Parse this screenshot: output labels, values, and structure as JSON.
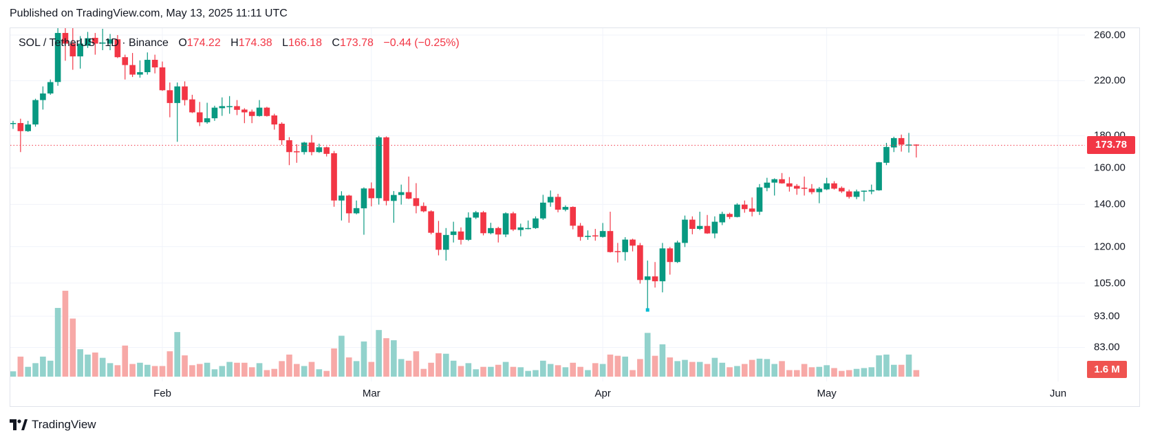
{
  "header": {
    "published": "Published on TradingView.com, May 13, 2025 11:11 UTC"
  },
  "legend": {
    "symbol": "SOL / TetherUS · 1D · Binance",
    "open_label": "O",
    "open": "174.22",
    "high_label": "H",
    "high": "174.38",
    "low_label": "L",
    "low": "166.18",
    "close_label": "C",
    "close": "173.78",
    "change": "−0.44 (−0.25%)"
  },
  "price_axis": {
    "labels": [
      "260.00",
      "220.00",
      "180.00",
      "160.00",
      "140.00",
      "120.00",
      "105.00",
      "93.00",
      "83.00"
    ],
    "scale": "log"
  },
  "time_axis": {
    "labels": [
      {
        "label": "Feb",
        "date": "2025-02-01"
      },
      {
        "label": "Mar",
        "date": "2025-03-01"
      },
      {
        "label": "Apr",
        "date": "2025-04-01"
      },
      {
        "label": "May",
        "date": "2025-05-01"
      },
      {
        "label": "Jun",
        "date": "2025-06-01"
      }
    ]
  },
  "last_price_label": "173.78",
  "volume_label": "1.6 M",
  "logo": {
    "text": "TradingView",
    "icon": "tradingview-logo-icon"
  },
  "colors": {
    "up": "#089981",
    "down": "#f23645",
    "volume_up": "#92d2cc",
    "volume_down": "#f7a9a7",
    "grid": "#f0f3fa",
    "last_price": "#f23645"
  },
  "chart_data": {
    "type": "candlestick",
    "title": "SOL / TetherUS · 1D · Binance",
    "y_scale": "log",
    "ylim": [
      80,
      265
    ],
    "grid": true,
    "columns": [
      "date",
      "open",
      "high",
      "low",
      "close",
      "volume_M"
    ],
    "rows": [
      [
        "2025-01-12",
        188,
        190,
        184.5,
        188.5,
        1.3
      ],
      [
        "2025-01-13",
        188.5,
        191.5,
        169.5,
        183,
        4.9
      ],
      [
        "2025-01-14",
        183,
        190,
        182.5,
        187.5,
        2.4
      ],
      [
        "2025-01-15",
        187.5,
        206,
        186,
        205,
        3.3
      ],
      [
        "2025-01-16",
        205,
        215.5,
        198,
        210,
        4.9
      ],
      [
        "2025-01-17",
        210,
        221,
        209,
        218.9,
        3.9
      ],
      [
        "2025-01-18",
        219,
        270,
        216,
        262,
        16.8
      ],
      [
        "2025-01-19",
        262,
        295,
        236.7,
        252,
        21.0
      ],
      [
        "2025-01-20",
        252,
        275,
        229,
        240.5,
        14.2
      ],
      [
        "2025-01-21",
        240.5,
        259,
        230,
        252,
        6.7
      ],
      [
        "2025-01-22",
        250,
        263,
        248,
        257,
        5.4
      ],
      [
        "2025-01-23",
        257.4,
        262,
        242,
        252,
        5.9
      ],
      [
        "2025-01-24",
        252,
        266,
        246,
        253,
        4.6
      ],
      [
        "2025-01-25",
        252,
        261,
        246,
        256,
        3.3
      ],
      [
        "2025-01-26",
        256,
        260,
        239,
        239.8,
        2.8
      ],
      [
        "2025-01-27",
        239.8,
        242,
        221,
        233,
        7.6
      ],
      [
        "2025-01-28",
        233,
        243.5,
        223,
        225,
        3.1
      ],
      [
        "2025-01-29",
        225,
        237,
        222.5,
        227,
        3.4
      ],
      [
        "2025-01-30",
        227,
        244,
        225,
        237.5,
        2.9
      ],
      [
        "2025-01-31",
        237.5,
        242,
        226,
        231,
        2.6
      ],
      [
        "2025-02-01",
        231,
        236,
        212,
        212.5,
        2.6
      ],
      [
        "2025-02-02",
        212.5,
        218.6,
        192.5,
        202.8,
        6.2
      ],
      [
        "2025-02-03",
        202.8,
        218.6,
        176,
        215.5,
        10.9
      ],
      [
        "2025-02-04",
        215.5,
        219.5,
        201,
        205,
        5.2
      ],
      [
        "2025-02-05",
        205.5,
        209,
        195.5,
        196,
        2.8
      ],
      [
        "2025-02-06",
        196,
        203.6,
        186.4,
        189,
        3.1
      ],
      [
        "2025-02-07",
        189,
        203,
        188,
        191.8,
        3.4
      ],
      [
        "2025-02-08",
        191.8,
        200.8,
        190,
        199.4,
        1.8
      ],
      [
        "2025-02-09",
        199,
        207,
        193.5,
        200.5,
        2.6
      ],
      [
        "2025-02-10",
        200.4,
        208,
        195,
        200.5,
        3.6
      ],
      [
        "2025-02-11",
        200.5,
        205,
        194,
        197.8,
        3.4
      ],
      [
        "2025-02-12",
        198,
        199,
        188.4,
        196,
        3.4
      ],
      [
        "2025-02-13",
        196.5,
        198,
        188.4,
        193.4,
        2.3
      ],
      [
        "2025-02-14",
        193.4,
        205,
        193,
        199.4,
        3.3
      ],
      [
        "2025-02-15",
        199.4,
        200,
        193,
        193.4,
        1.6
      ],
      [
        "2025-02-16",
        193.8,
        195,
        184,
        187.5,
        1.9
      ],
      [
        "2025-02-17",
        188,
        189,
        174,
        177,
        3.8
      ],
      [
        "2025-02-18",
        177,
        179,
        161.6,
        169.5,
        5.4
      ],
      [
        "2025-02-19",
        170,
        174.4,
        163,
        169.8,
        3.1
      ],
      [
        "2025-02-20",
        169.5,
        176,
        168,
        175.5,
        2.6
      ],
      [
        "2025-02-21",
        175.5,
        180.4,
        167.5,
        169.5,
        3.6
      ],
      [
        "2025-02-22",
        169.5,
        174.8,
        169,
        172.5,
        1.8
      ],
      [
        "2025-02-23",
        172.5,
        173,
        166.8,
        168.4,
        1.4
      ],
      [
        "2025-02-24",
        168.8,
        170.2,
        138.8,
        142,
        6.9
      ],
      [
        "2025-02-25",
        142,
        146.9,
        132,
        144.6,
        10.0
      ],
      [
        "2025-02-26",
        144.6,
        145,
        130.9,
        135.5,
        4.7
      ],
      [
        "2025-02-27",
        135.5,
        142,
        135,
        138.1,
        3.8
      ],
      [
        "2025-02-28",
        138,
        149,
        125.3,
        148.4,
        8.6
      ],
      [
        "2025-03-01",
        148.4,
        151.7,
        139,
        143.2,
        3.6
      ],
      [
        "2025-03-02",
        143.2,
        179.8,
        139.9,
        178.9,
        11.4
      ],
      [
        "2025-03-03",
        178.9,
        179.5,
        139.5,
        141.8,
        9.4
      ],
      [
        "2025-03-04",
        141.8,
        147,
        130.9,
        144.9,
        8.9
      ],
      [
        "2025-03-05",
        144.9,
        150.5,
        139.9,
        146.4,
        4.3
      ],
      [
        "2025-03-06",
        146.4,
        155,
        142.7,
        143,
        3.9
      ],
      [
        "2025-03-07",
        143.2,
        151.3,
        135.5,
        139.2,
        6.2
      ],
      [
        "2025-03-08",
        139.2,
        141,
        136,
        136.5,
        1.9
      ],
      [
        "2025-03-09",
        136.5,
        137,
        125.5,
        126.2,
        3.4
      ],
      [
        "2025-03-10",
        126.2,
        131.8,
        116.2,
        118.6,
        5.7
      ],
      [
        "2025-03-11",
        118.6,
        128.4,
        114,
        125.2,
        5.6
      ],
      [
        "2025-03-12",
        125.2,
        131.4,
        121.8,
        126.8,
        3.9
      ],
      [
        "2025-03-13",
        126.8,
        128.7,
        120.9,
        123,
        2.6
      ],
      [
        "2025-03-14",
        123,
        136,
        122.5,
        133.4,
        3.3
      ],
      [
        "2025-03-15",
        133.4,
        136.7,
        132.7,
        136,
        1.8
      ],
      [
        "2025-03-16",
        136,
        136.7,
        125,
        126,
        2.4
      ],
      [
        "2025-03-17",
        126,
        130.9,
        125.5,
        128.4,
        2.4
      ],
      [
        "2025-03-18",
        128.4,
        129,
        121.8,
        125.4,
        2.9
      ],
      [
        "2025-03-19",
        125.4,
        136,
        124.2,
        135.5,
        3.6
      ],
      [
        "2025-03-20",
        135.5,
        136.3,
        127,
        127.7,
        2.4
      ],
      [
        "2025-03-21",
        127.5,
        130.5,
        124.6,
        128.7,
        2.3
      ],
      [
        "2025-03-22",
        128.3,
        132,
        127.8,
        128.4,
        1.4
      ],
      [
        "2025-03-23",
        128.4,
        134,
        128,
        133,
        1.6
      ],
      [
        "2025-03-24",
        133,
        145,
        132.3,
        140.9,
        3.9
      ],
      [
        "2025-03-25",
        141,
        147.3,
        138.8,
        143.9,
        3.1
      ],
      [
        "2025-03-26",
        143.9,
        145.5,
        136,
        137.3,
        2.8
      ],
      [
        "2025-03-27",
        137.3,
        139.5,
        136.5,
        138.7,
        2.3
      ],
      [
        "2025-03-28",
        138.7,
        139,
        127.8,
        129.5,
        3.4
      ],
      [
        "2025-03-29",
        129.5,
        130.8,
        122.6,
        124.3,
        2.4
      ],
      [
        "2025-03-30",
        124.3,
        127.3,
        123,
        124.8,
        1.6
      ],
      [
        "2025-03-31",
        125,
        128,
        122.6,
        124.6,
        3.3
      ],
      [
        "2025-04-01",
        124.3,
        130.8,
        124,
        127,
        3.1
      ],
      [
        "2025-04-02",
        127,
        136.3,
        117.4,
        117.6,
        5.4
      ],
      [
        "2025-04-03",
        118,
        121.6,
        113.2,
        117.8,
        5.1
      ],
      [
        "2025-04-04",
        117.6,
        124.2,
        114,
        123.1,
        4.9
      ],
      [
        "2025-04-05",
        123.1,
        123.5,
        117.9,
        120.4,
        1.6
      ],
      [
        "2025-04-06",
        120.6,
        121.6,
        104.8,
        106.2,
        4.3
      ],
      [
        "2025-04-07",
        106.2,
        114,
        95.3,
        107.6,
        10.7
      ],
      [
        "2025-04-08",
        107.6,
        113.4,
        103.3,
        105.7,
        5.1
      ],
      [
        "2025-04-09",
        105.7,
        121.6,
        101.5,
        119.2,
        7.9
      ],
      [
        "2025-04-10",
        119.2,
        119.8,
        108.3,
        113.4,
        4.7
      ],
      [
        "2025-04-11",
        113.4,
        122.6,
        113,
        121.8,
        3.8
      ],
      [
        "2025-04-12",
        121.6,
        134.4,
        119.8,
        132.4,
        4.1
      ],
      [
        "2025-04-13",
        132.4,
        134,
        125.5,
        128,
        3.6
      ],
      [
        "2025-04-14",
        128,
        136.3,
        127.5,
        129.4,
        3.6
      ],
      [
        "2025-04-15",
        129.4,
        134.7,
        125.7,
        125.9,
        3.1
      ],
      [
        "2025-04-16",
        125.9,
        134,
        123.7,
        131.4,
        4.6
      ],
      [
        "2025-04-17",
        131.1,
        136.3,
        129.8,
        135.2,
        3.4
      ],
      [
        "2025-04-18",
        135.2,
        135.8,
        132.7,
        133.7,
        2.3
      ],
      [
        "2025-04-19",
        133.7,
        140.6,
        133.5,
        139.9,
        2.6
      ],
      [
        "2025-04-20",
        139.9,
        142,
        135.8,
        137.6,
        3.1
      ],
      [
        "2025-04-21",
        137.9,
        143.6,
        134,
        136.3,
        4.1
      ],
      [
        "2025-04-22",
        136.3,
        150.8,
        134.7,
        149,
        4.4
      ],
      [
        "2025-04-23",
        148.7,
        154.3,
        146.9,
        151.6,
        4.3
      ],
      [
        "2025-04-24",
        151.6,
        154,
        144.6,
        153.5,
        3.1
      ],
      [
        "2025-04-25",
        153.5,
        157,
        151,
        151.2,
        3.8
      ],
      [
        "2025-04-26",
        151.2,
        154.7,
        146.7,
        149.4,
        1.6
      ],
      [
        "2025-04-27",
        149.8,
        150.8,
        145,
        148.3,
        1.6
      ],
      [
        "2025-04-28",
        148.8,
        155,
        144.6,
        148.7,
        3.1
      ],
      [
        "2025-04-29",
        148.3,
        150.8,
        145.3,
        146.4,
        2.3
      ],
      [
        "2025-04-30",
        146.4,
        149.2,
        140.6,
        148.3,
        2.4
      ],
      [
        "2025-05-01",
        147.9,
        154.3,
        147.5,
        151.2,
        2.8
      ],
      [
        "2025-05-02",
        151.2,
        152.4,
        147.8,
        148.3,
        2.1
      ],
      [
        "2025-05-03",
        148.7,
        149.5,
        146,
        146.8,
        1.4
      ],
      [
        "2025-05-04",
        146.8,
        147.8,
        143,
        143.9,
        1.6
      ],
      [
        "2025-05-05",
        143.9,
        147.8,
        142.7,
        146.8,
        1.9
      ],
      [
        "2025-05-06",
        146.8,
        147.3,
        141.6,
        147.2,
        2.1
      ],
      [
        "2025-05-07",
        146.8,
        150.5,
        145.3,
        147.5,
        2.3
      ],
      [
        "2025-05-08",
        147.4,
        163.5,
        147.2,
        163.3,
        5.2
      ],
      [
        "2025-05-09",
        163,
        175.3,
        161.6,
        172.7,
        5.4
      ],
      [
        "2025-05-10",
        172.4,
        179.3,
        169.5,
        178.4,
        2.9
      ],
      [
        "2025-05-11",
        178.4,
        180.7,
        169.8,
        174.2,
        2.9
      ],
      [
        "2025-05-12",
        174.2,
        181.8,
        169.2,
        174.22,
        5.4
      ],
      [
        "2025-05-13",
        174.22,
        174.38,
        166.18,
        173.78,
        1.6
      ]
    ],
    "last_price": 173.78
  }
}
